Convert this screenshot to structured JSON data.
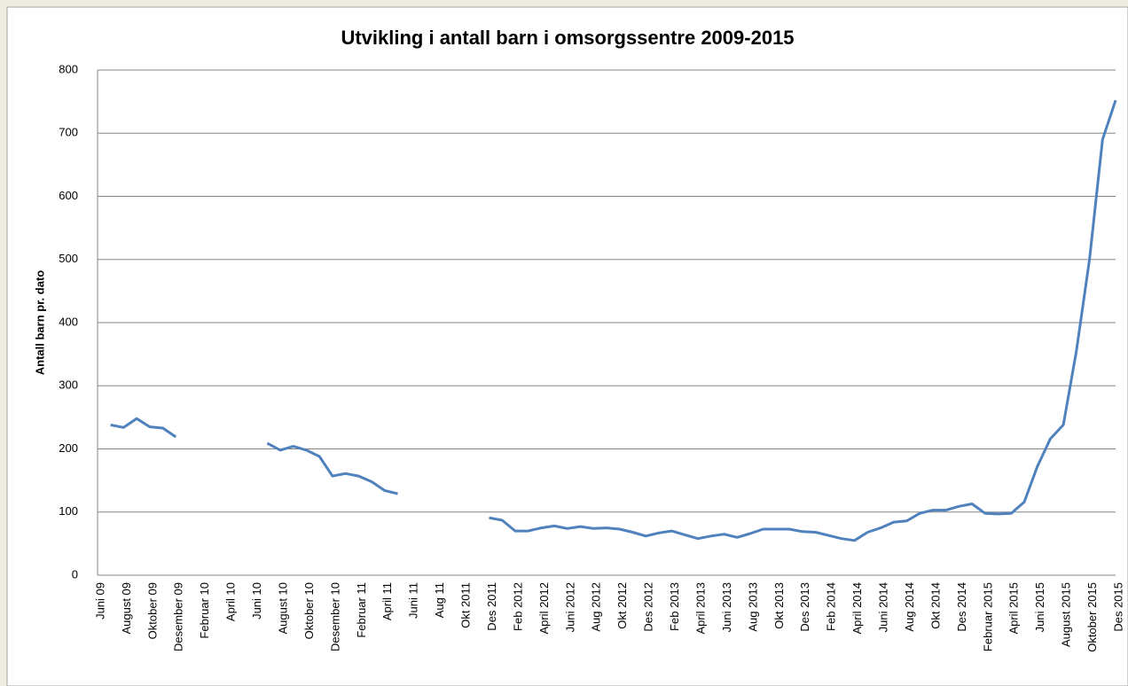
{
  "chart_data": {
    "type": "line",
    "title": "Utvikling i antall barn i omsorgssentre 2009-2015",
    "y_label": "Antall barn pr. dato",
    "categories": [
      "Juni 09",
      null,
      "August 09",
      null,
      "Oktober 09",
      null,
      "Desember 09",
      null,
      "Februar 10",
      null,
      "April 10",
      null,
      "Juni 10",
      null,
      "August 10",
      null,
      "Oktober 10",
      null,
      "Desember 10",
      null,
      "Februar 11",
      null,
      "April 11",
      null,
      "Juni 11",
      null,
      "Aug 11",
      null,
      "Okt 2011",
      null,
      "Des 2011",
      null,
      "Feb 2012",
      null,
      "April 2012",
      null,
      "Juni 2012",
      null,
      "Aug 2012",
      null,
      "Okt 2012",
      null,
      "Des 2012",
      null,
      "Feb  2013",
      null,
      "April 2013",
      null,
      "Juni 2013",
      null,
      "Aug 2013",
      null,
      "Okt 2013",
      null,
      "Des 2013",
      null,
      "Feb 2014",
      null,
      "April 2014",
      null,
      "Juni 2014",
      null,
      "Aug 2014",
      null,
      "Okt 2014",
      null,
      "Des 2014",
      null,
      "Februar 2015",
      null,
      "April 2015",
      null,
      "Juni 2015",
      null,
      "August 2015",
      null,
      "Oktober 2015",
      null,
      "Des 2015"
    ],
    "series": [
      {
        "name": "Antall barn",
        "color": "#4f81bd",
        "values": [
          null,
          238,
          234,
          248,
          235,
          233,
          219,
          null,
          null,
          null,
          null,
          null,
          null,
          209,
          198,
          204,
          198,
          188,
          157,
          161,
          157,
          148,
          134,
          129,
          null,
          null,
          null,
          null,
          null,
          null,
          91,
          87,
          70,
          70,
          75,
          78,
          74,
          77,
          74,
          75,
          73,
          68,
          62,
          67,
          70,
          64,
          58,
          62,
          65,
          60,
          66,
          73,
          73,
          73,
          69,
          68,
          63,
          58,
          55,
          68,
          75,
          84,
          86,
          98,
          103,
          103,
          109,
          113,
          98,
          97,
          98,
          116,
          172,
          216,
          238,
          355,
          500,
          690,
          752
        ]
      }
    ],
    "ylim": [
      0,
      800
    ],
    "yticks": [
      0,
      100,
      200,
      300,
      400,
      500,
      600,
      700,
      800
    ],
    "grid": true
  }
}
